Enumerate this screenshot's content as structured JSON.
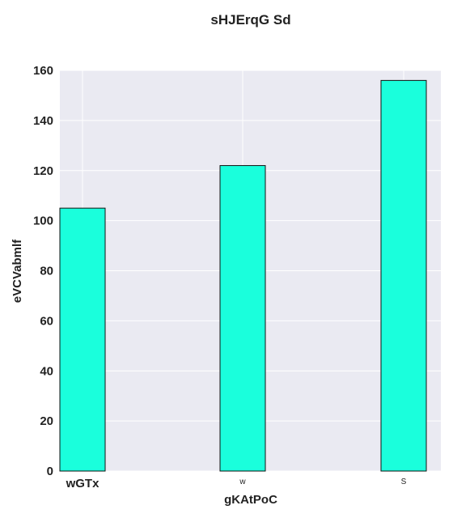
{
  "chart_data": {
    "type": "bar",
    "title": "sHJErqG Sd",
    "xlabel": "gKAtPoC",
    "ylabel": "eVCVabmlf",
    "categories": [
      "wGTx",
      "w",
      "S"
    ],
    "values": [
      105,
      122,
      156
    ],
    "ylim": [
      0,
      160
    ],
    "yticks": [
      0,
      20,
      40,
      60,
      80,
      100,
      120,
      140,
      160
    ],
    "grid": true,
    "colors": {
      "bar_fill": "#1affdc",
      "bar_edge": "#111111",
      "plot_background": "#eaeaf2",
      "grid": "#ffffff"
    }
  }
}
